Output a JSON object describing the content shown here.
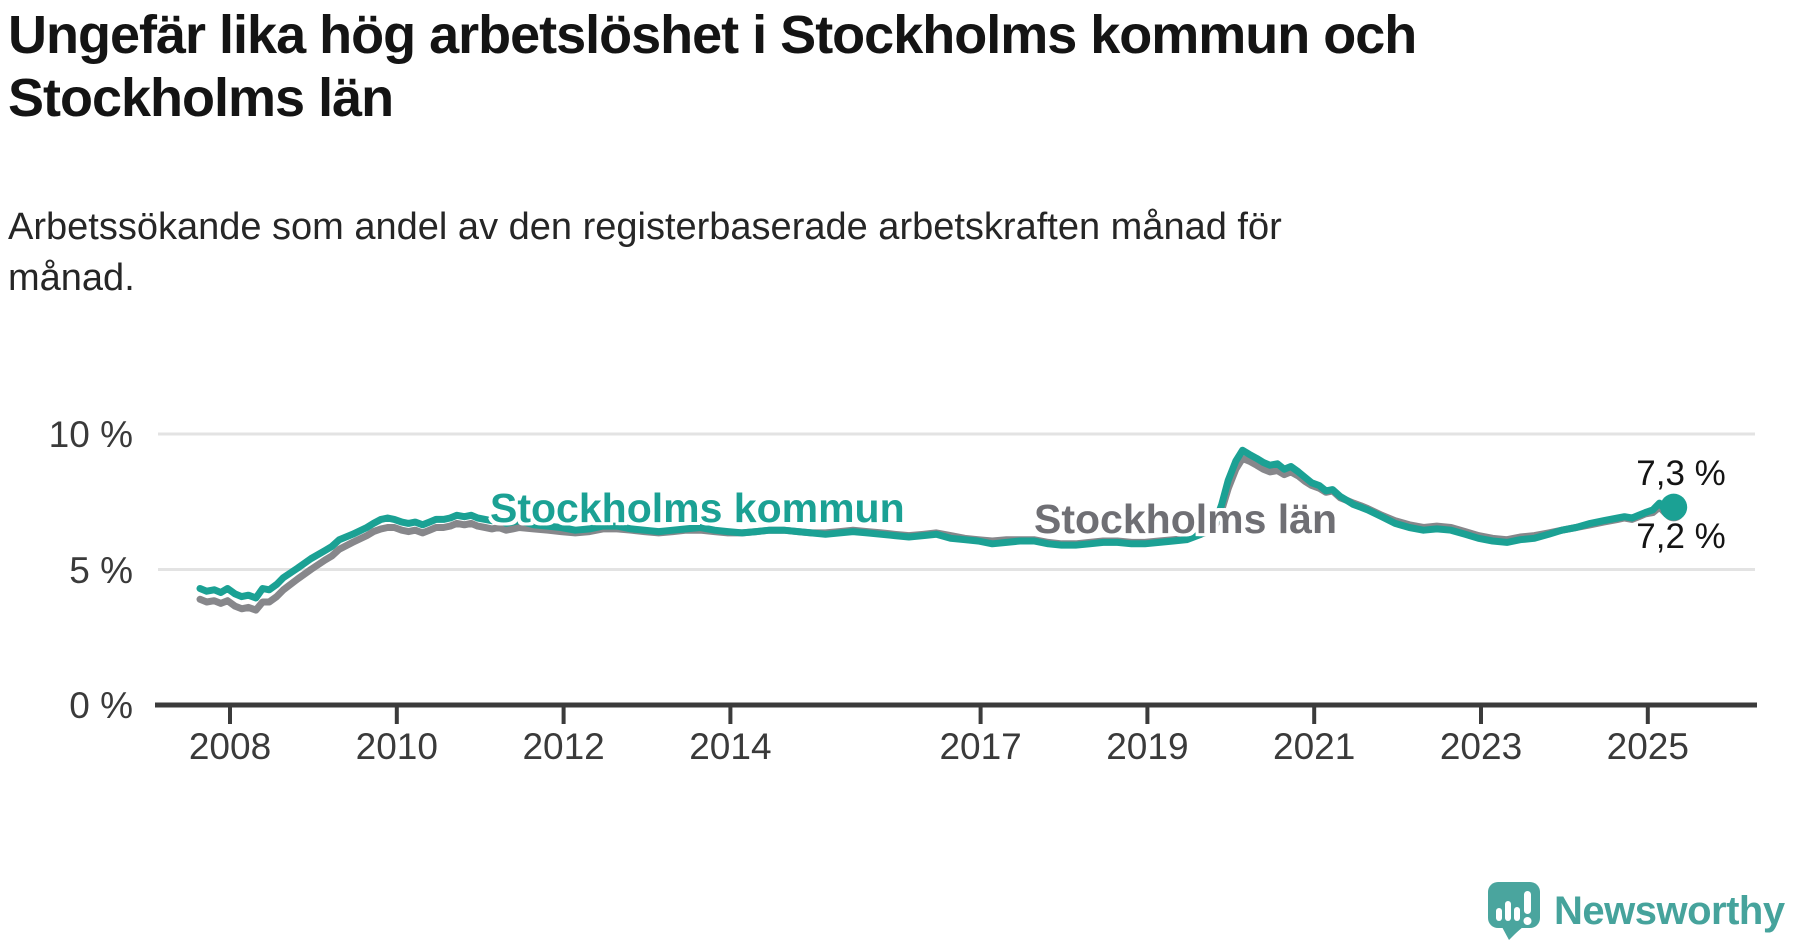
{
  "header": {
    "title": "Ungefär lika hög arbetslöshet i Stockholms kommun och\nStockholms län",
    "subtitle": "Arbetssökande som andel av den registerbaserade arbetskraften månad för\nmånad."
  },
  "footer": {
    "brand": "Newsworthy"
  },
  "colors": {
    "kommun_line": "#1ba194",
    "lan_line": "#87878b",
    "lan_label": "#6f6f74",
    "axis": "#3b3b3b",
    "grid": "#e3e3e3",
    "text": "#3a3a3a",
    "brand_teal": "#47a49d",
    "end_label_text": "#141414"
  },
  "chart_data": {
    "type": "line",
    "title": "Ungefär lika hög arbetslöshet i Stockholms kommun och Stockholms län",
    "subtitle": "Arbetssökande som andel av den registerbaserade arbetskraften månad för månad.",
    "unit": "%",
    "grid": "horizontal",
    "legend_position": "inline",
    "x_axis": {
      "range": [
        2008,
        2025.75
      ],
      "ticks": [
        2008,
        2010,
        2012,
        2014,
        2017,
        2019,
        2021,
        2023,
        2025
      ]
    },
    "y_axis": {
      "range": [
        0,
        11
      ],
      "ticks": [
        {
          "value": 10,
          "label": "10 %"
        },
        {
          "value": 5,
          "label": "5 %"
        },
        {
          "value": 0,
          "label": "0 %"
        }
      ]
    },
    "series": [
      {
        "name": "Stockholms kommun",
        "color": "#1ba194",
        "end_label": "7,3 %",
        "end_value": 7.3,
        "points": [
          [
            2008.0,
            4.3
          ],
          [
            2008.08,
            4.2
          ],
          [
            2008.17,
            4.25
          ],
          [
            2008.25,
            4.15
          ],
          [
            2008.33,
            4.3
          ],
          [
            2008.42,
            4.1
          ],
          [
            2008.5,
            4.0
          ],
          [
            2008.58,
            4.05
          ],
          [
            2008.67,
            3.95
          ],
          [
            2008.75,
            4.3
          ],
          [
            2008.83,
            4.25
          ],
          [
            2008.92,
            4.45
          ],
          [
            2009.0,
            4.7
          ],
          [
            2009.17,
            5.05
          ],
          [
            2009.33,
            5.4
          ],
          [
            2009.5,
            5.7
          ],
          [
            2009.58,
            5.85
          ],
          [
            2009.67,
            6.1
          ],
          [
            2009.83,
            6.3
          ],
          [
            2010.0,
            6.55
          ],
          [
            2010.08,
            6.7
          ],
          [
            2010.17,
            6.85
          ],
          [
            2010.25,
            6.9
          ],
          [
            2010.33,
            6.85
          ],
          [
            2010.42,
            6.75
          ],
          [
            2010.5,
            6.7
          ],
          [
            2010.58,
            6.75
          ],
          [
            2010.67,
            6.65
          ],
          [
            2010.75,
            6.75
          ],
          [
            2010.83,
            6.85
          ],
          [
            2010.92,
            6.85
          ],
          [
            2011.0,
            6.9
          ],
          [
            2011.08,
            7.0
          ],
          [
            2011.17,
            6.95
          ],
          [
            2011.25,
            7.0
          ],
          [
            2011.33,
            6.9
          ],
          [
            2011.42,
            6.85
          ],
          [
            2011.5,
            6.8
          ],
          [
            2011.58,
            6.85
          ],
          [
            2011.67,
            6.7
          ],
          [
            2011.75,
            6.75
          ],
          [
            2011.83,
            6.8
          ],
          [
            2012.0,
            6.65
          ],
          [
            2012.17,
            6.6
          ],
          [
            2012.33,
            6.55
          ],
          [
            2012.5,
            6.45
          ],
          [
            2012.67,
            6.5
          ],
          [
            2012.83,
            6.6
          ],
          [
            2013.0,
            6.6
          ],
          [
            2013.17,
            6.5
          ],
          [
            2013.33,
            6.45
          ],
          [
            2013.5,
            6.4
          ],
          [
            2013.67,
            6.45
          ],
          [
            2013.83,
            6.5
          ],
          [
            2014.0,
            6.55
          ],
          [
            2014.17,
            6.45
          ],
          [
            2014.33,
            6.4
          ],
          [
            2014.5,
            6.35
          ],
          [
            2014.67,
            6.4
          ],
          [
            2014.83,
            6.45
          ],
          [
            2015.0,
            6.45
          ],
          [
            2015.17,
            6.4
          ],
          [
            2015.33,
            6.35
          ],
          [
            2015.5,
            6.3
          ],
          [
            2015.67,
            6.35
          ],
          [
            2015.83,
            6.4
          ],
          [
            2016.0,
            6.35
          ],
          [
            2016.17,
            6.3
          ],
          [
            2016.33,
            6.25
          ],
          [
            2016.5,
            6.2
          ],
          [
            2016.67,
            6.25
          ],
          [
            2016.83,
            6.3
          ],
          [
            2017.0,
            6.15
          ],
          [
            2017.17,
            6.1
          ],
          [
            2017.33,
            6.05
          ],
          [
            2017.5,
            5.95
          ],
          [
            2017.67,
            6.0
          ],
          [
            2017.83,
            6.05
          ],
          [
            2018.0,
            6.05
          ],
          [
            2018.17,
            5.95
          ],
          [
            2018.33,
            5.9
          ],
          [
            2018.5,
            5.9
          ],
          [
            2018.67,
            5.95
          ],
          [
            2018.83,
            6.0
          ],
          [
            2019.0,
            6.0
          ],
          [
            2019.17,
            5.95
          ],
          [
            2019.33,
            5.95
          ],
          [
            2019.5,
            6.0
          ],
          [
            2019.67,
            6.05
          ],
          [
            2019.83,
            6.1
          ],
          [
            2020.0,
            6.3
          ],
          [
            2020.08,
            6.45
          ],
          [
            2020.17,
            6.7
          ],
          [
            2020.25,
            7.4
          ],
          [
            2020.33,
            8.3
          ],
          [
            2020.42,
            9.0
          ],
          [
            2020.5,
            9.4
          ],
          [
            2020.58,
            9.25
          ],
          [
            2020.67,
            9.1
          ],
          [
            2020.75,
            8.95
          ],
          [
            2020.83,
            8.85
          ],
          [
            2020.92,
            8.9
          ],
          [
            2021.0,
            8.7
          ],
          [
            2021.08,
            8.8
          ],
          [
            2021.17,
            8.6
          ],
          [
            2021.25,
            8.4
          ],
          [
            2021.33,
            8.2
          ],
          [
            2021.42,
            8.1
          ],
          [
            2021.5,
            7.9
          ],
          [
            2021.58,
            7.95
          ],
          [
            2021.67,
            7.7
          ],
          [
            2021.75,
            7.55
          ],
          [
            2021.83,
            7.4
          ],
          [
            2021.92,
            7.3
          ],
          [
            2022.0,
            7.2
          ],
          [
            2022.17,
            6.95
          ],
          [
            2022.33,
            6.7
          ],
          [
            2022.5,
            6.55
          ],
          [
            2022.67,
            6.45
          ],
          [
            2022.83,
            6.5
          ],
          [
            2023.0,
            6.45
          ],
          [
            2023.17,
            6.3
          ],
          [
            2023.33,
            6.15
          ],
          [
            2023.5,
            6.05
          ],
          [
            2023.67,
            6.0
          ],
          [
            2023.83,
            6.1
          ],
          [
            2024.0,
            6.15
          ],
          [
            2024.17,
            6.3
          ],
          [
            2024.33,
            6.45
          ],
          [
            2024.5,
            6.55
          ],
          [
            2024.67,
            6.7
          ],
          [
            2024.83,
            6.8
          ],
          [
            2025.0,
            6.9
          ],
          [
            2025.08,
            6.95
          ],
          [
            2025.17,
            6.9
          ],
          [
            2025.25,
            7.0
          ],
          [
            2025.33,
            7.1
          ],
          [
            2025.42,
            7.2
          ],
          [
            2025.5,
            7.45
          ],
          [
            2025.58,
            7.15
          ],
          [
            2025.67,
            7.3
          ]
        ]
      },
      {
        "name": "Stockholms län",
        "color": "#87878b",
        "end_label": "7,2 %",
        "end_value": 7.2,
        "points": [
          [
            2008.0,
            3.9
          ],
          [
            2008.08,
            3.8
          ],
          [
            2008.17,
            3.85
          ],
          [
            2008.25,
            3.75
          ],
          [
            2008.33,
            3.85
          ],
          [
            2008.42,
            3.65
          ],
          [
            2008.5,
            3.55
          ],
          [
            2008.58,
            3.6
          ],
          [
            2008.67,
            3.5
          ],
          [
            2008.75,
            3.8
          ],
          [
            2008.83,
            3.8
          ],
          [
            2008.92,
            4.0
          ],
          [
            2009.0,
            4.25
          ],
          [
            2009.17,
            4.65
          ],
          [
            2009.33,
            5.0
          ],
          [
            2009.5,
            5.35
          ],
          [
            2009.58,
            5.5
          ],
          [
            2009.67,
            5.75
          ],
          [
            2009.83,
            6.0
          ],
          [
            2010.0,
            6.25
          ],
          [
            2010.08,
            6.4
          ],
          [
            2010.17,
            6.5
          ],
          [
            2010.25,
            6.55
          ],
          [
            2010.33,
            6.55
          ],
          [
            2010.42,
            6.45
          ],
          [
            2010.5,
            6.4
          ],
          [
            2010.58,
            6.45
          ],
          [
            2010.67,
            6.35
          ],
          [
            2010.75,
            6.45
          ],
          [
            2010.83,
            6.55
          ],
          [
            2010.92,
            6.55
          ],
          [
            2011.0,
            6.6
          ],
          [
            2011.08,
            6.7
          ],
          [
            2011.17,
            6.65
          ],
          [
            2011.25,
            6.7
          ],
          [
            2011.33,
            6.6
          ],
          [
            2011.42,
            6.55
          ],
          [
            2011.5,
            6.5
          ],
          [
            2011.58,
            6.55
          ],
          [
            2011.67,
            6.45
          ],
          [
            2011.75,
            6.5
          ],
          [
            2011.83,
            6.55
          ],
          [
            2012.0,
            6.5
          ],
          [
            2012.17,
            6.45
          ],
          [
            2012.33,
            6.4
          ],
          [
            2012.5,
            6.35
          ],
          [
            2012.67,
            6.4
          ],
          [
            2012.83,
            6.5
          ],
          [
            2013.0,
            6.5
          ],
          [
            2013.17,
            6.45
          ],
          [
            2013.33,
            6.4
          ],
          [
            2013.5,
            6.35
          ],
          [
            2013.67,
            6.4
          ],
          [
            2013.83,
            6.45
          ],
          [
            2014.0,
            6.45
          ],
          [
            2014.17,
            6.4
          ],
          [
            2014.33,
            6.35
          ],
          [
            2014.5,
            6.35
          ],
          [
            2014.67,
            6.4
          ],
          [
            2014.83,
            6.45
          ],
          [
            2015.0,
            6.45
          ],
          [
            2015.17,
            6.4
          ],
          [
            2015.33,
            6.35
          ],
          [
            2015.5,
            6.35
          ],
          [
            2015.67,
            6.4
          ],
          [
            2015.83,
            6.45
          ],
          [
            2016.0,
            6.4
          ],
          [
            2016.17,
            6.35
          ],
          [
            2016.33,
            6.3
          ],
          [
            2016.5,
            6.25
          ],
          [
            2016.67,
            6.3
          ],
          [
            2016.83,
            6.35
          ],
          [
            2017.0,
            6.25
          ],
          [
            2017.17,
            6.15
          ],
          [
            2017.33,
            6.1
          ],
          [
            2017.5,
            6.05
          ],
          [
            2017.67,
            6.1
          ],
          [
            2017.83,
            6.1
          ],
          [
            2018.0,
            6.1
          ],
          [
            2018.17,
            6.0
          ],
          [
            2018.33,
            5.95
          ],
          [
            2018.5,
            5.95
          ],
          [
            2018.67,
            6.0
          ],
          [
            2018.83,
            6.05
          ],
          [
            2019.0,
            6.05
          ],
          [
            2019.17,
            6.0
          ],
          [
            2019.33,
            6.0
          ],
          [
            2019.5,
            6.05
          ],
          [
            2019.67,
            6.1
          ],
          [
            2019.83,
            6.15
          ],
          [
            2020.0,
            6.3
          ],
          [
            2020.08,
            6.4
          ],
          [
            2020.17,
            6.6
          ],
          [
            2020.25,
            7.2
          ],
          [
            2020.33,
            8.0
          ],
          [
            2020.42,
            8.7
          ],
          [
            2020.5,
            9.1
          ],
          [
            2020.58,
            9.0
          ],
          [
            2020.67,
            8.85
          ],
          [
            2020.75,
            8.7
          ],
          [
            2020.83,
            8.6
          ],
          [
            2020.92,
            8.65
          ],
          [
            2021.0,
            8.5
          ],
          [
            2021.08,
            8.6
          ],
          [
            2021.17,
            8.45
          ],
          [
            2021.25,
            8.25
          ],
          [
            2021.33,
            8.1
          ],
          [
            2021.42,
            8.0
          ],
          [
            2021.5,
            7.85
          ],
          [
            2021.58,
            7.9
          ],
          [
            2021.67,
            7.65
          ],
          [
            2021.75,
            7.55
          ],
          [
            2021.83,
            7.45
          ],
          [
            2021.92,
            7.35
          ],
          [
            2022.0,
            7.25
          ],
          [
            2022.17,
            7.0
          ],
          [
            2022.33,
            6.8
          ],
          [
            2022.5,
            6.65
          ],
          [
            2022.67,
            6.55
          ],
          [
            2022.83,
            6.6
          ],
          [
            2023.0,
            6.55
          ],
          [
            2023.17,
            6.4
          ],
          [
            2023.33,
            6.25
          ],
          [
            2023.5,
            6.15
          ],
          [
            2023.67,
            6.1
          ],
          [
            2023.83,
            6.2
          ],
          [
            2024.0,
            6.25
          ],
          [
            2024.17,
            6.35
          ],
          [
            2024.33,
            6.45
          ],
          [
            2024.5,
            6.55
          ],
          [
            2024.67,
            6.65
          ],
          [
            2024.83,
            6.75
          ],
          [
            2025.0,
            6.85
          ],
          [
            2025.08,
            6.9
          ],
          [
            2025.17,
            6.85
          ],
          [
            2025.25,
            6.95
          ],
          [
            2025.33,
            7.05
          ],
          [
            2025.42,
            7.1
          ],
          [
            2025.5,
            7.3
          ],
          [
            2025.58,
            7.05
          ],
          [
            2025.67,
            7.2
          ]
        ]
      }
    ]
  }
}
